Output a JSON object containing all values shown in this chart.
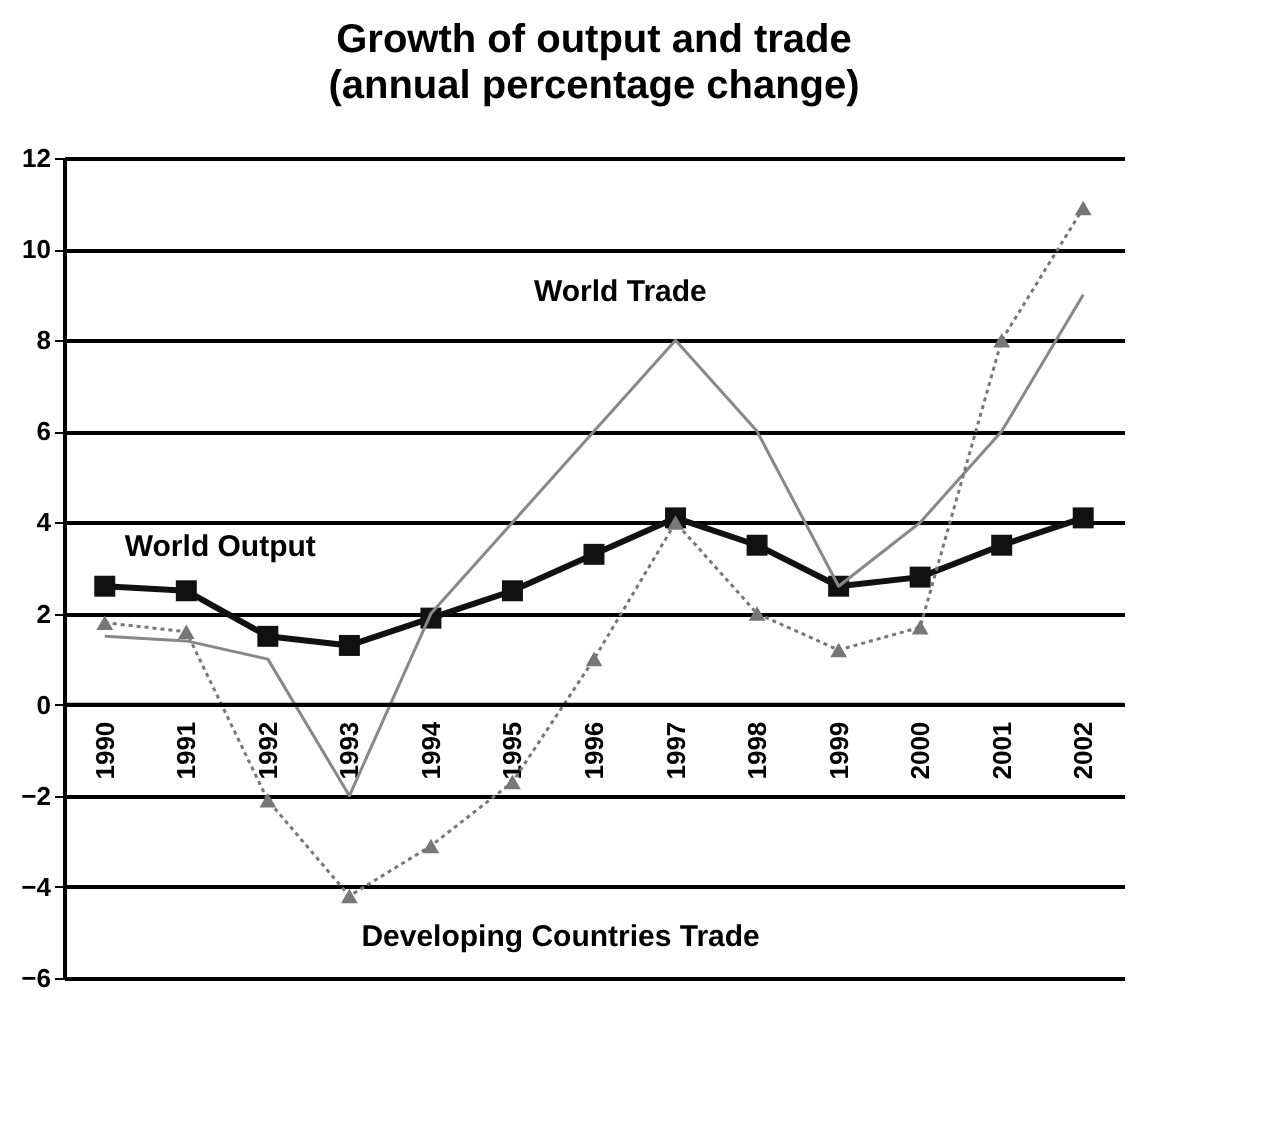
{
  "chart_data": {
    "type": "line",
    "title": "Growth of output and trade",
    "subtitle": "(annual percentage change)",
    "categories": [
      "1990",
      "1991",
      "1992",
      "1993",
      "1994",
      "1995",
      "1996",
      "1997",
      "1998",
      "1999",
      "2000",
      "2001",
      "2002"
    ],
    "series": [
      {
        "name": "World Output",
        "color": "#111111",
        "marker": "square",
        "line_style": "solid",
        "values": [
          2.6,
          2.5,
          1.5,
          1.3,
          1.9,
          2.5,
          3.3,
          4.1,
          3.5,
          2.6,
          2.8,
          3.5,
          4.1
        ]
      },
      {
        "name": "World Trade",
        "color": "#888888",
        "marker": "none",
        "line_style": "solid",
        "values": [
          1.5,
          1.4,
          1.0,
          -2.0,
          2.0,
          4.0,
          6.0,
          8.0,
          6.0,
          2.6,
          4.0,
          6.0,
          9.0
        ]
      },
      {
        "name": "Developing Countries Trade",
        "color": "#777777",
        "marker": "triangle",
        "line_style": "dotted",
        "values": [
          1.8,
          1.6,
          -2.1,
          -4.2,
          -3.1,
          -1.7,
          1.0,
          4.0,
          2.0,
          1.2,
          1.7,
          8.0,
          10.9
        ]
      }
    ],
    "ylim": [
      -6,
      12
    ],
    "yticks": [
      -6,
      -4,
      -2,
      0,
      2,
      4,
      6,
      8,
      10,
      12
    ],
    "grid": "y"
  }
}
